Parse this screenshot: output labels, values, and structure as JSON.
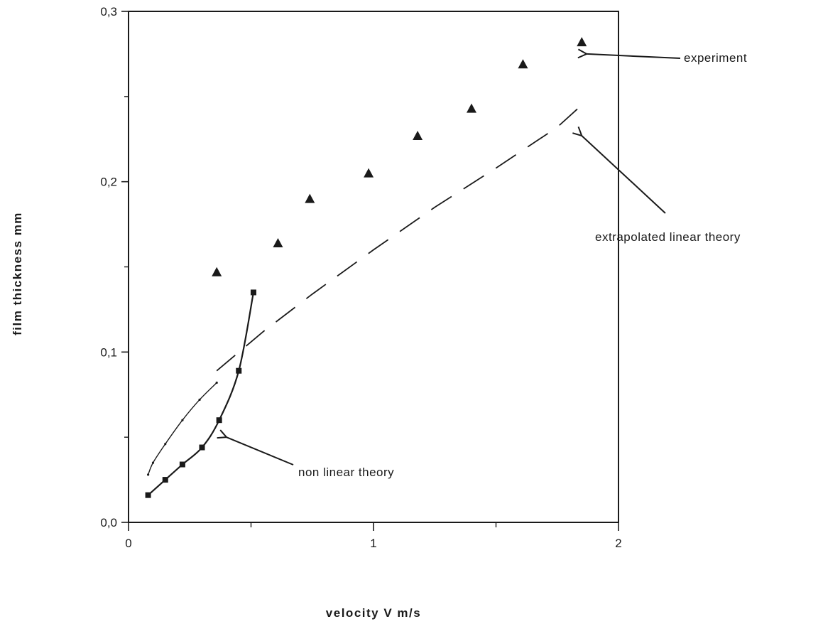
{
  "chart_data": {
    "type": "scatter",
    "title": "",
    "xlabel": "velocity   V   m/s",
    "ylabel": "film   thickness   mm",
    "xlim": [
      0,
      2
    ],
    "ylim": [
      0,
      0.3
    ],
    "x_ticks": [
      0,
      1,
      2
    ],
    "x_tick_labels": [
      "0",
      "1",
      "2"
    ],
    "y_ticks": [
      0,
      0.1,
      0.2,
      0.3
    ],
    "y_tick_labels": [
      "0,0",
      "0,1",
      "0,2",
      "0,3"
    ],
    "grid": false,
    "legend": "none",
    "series": [
      {
        "name": "experiment",
        "style": "triangle-markers",
        "x": [
          0.36,
          0.61,
          0.74,
          0.98,
          1.18,
          1.4,
          1.61,
          1.85
        ],
        "y": [
          0.147,
          0.164,
          0.19,
          0.205,
          0.227,
          0.243,
          0.269,
          0.282
        ]
      },
      {
        "name": "extrapolated linear theory",
        "style": "dashed-line",
        "x": [
          0.36,
          0.55,
          0.75,
          1.0,
          1.25,
          1.5,
          1.75,
          1.85
        ],
        "y": [
          0.089,
          0.112,
          0.134,
          0.16,
          0.185,
          0.208,
          0.232,
          0.245
        ]
      },
      {
        "name": "",
        "style": "thin-solid-line",
        "x": [
          0.08,
          0.1,
          0.15,
          0.22,
          0.29,
          0.36
        ],
        "y": [
          0.028,
          0.035,
          0.046,
          0.06,
          0.072,
          0.082
        ]
      },
      {
        "name": "non linear theory",
        "style": "solid-line-square-markers",
        "x": [
          0.08,
          0.15,
          0.22,
          0.3,
          0.37,
          0.45,
          0.51
        ],
        "y": [
          0.016,
          0.025,
          0.034,
          0.044,
          0.06,
          0.089,
          0.135
        ]
      }
    ],
    "annotations": [
      {
        "text": "experiment",
        "point": [
          1.87,
          0.275
        ]
      },
      {
        "text": "extrapolated linear theory",
        "point": [
          1.85,
          0.227
        ]
      },
      {
        "text": "non linear theory",
        "point": [
          0.4,
          0.05
        ]
      }
    ]
  }
}
